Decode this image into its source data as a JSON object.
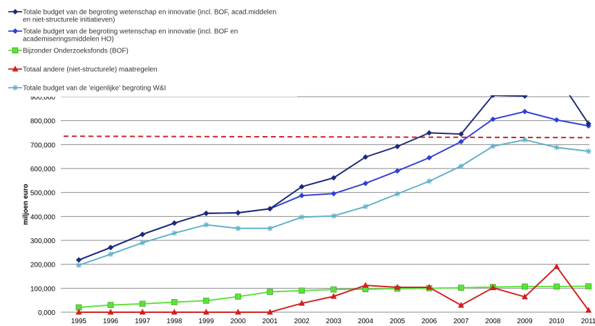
{
  "chart_data": {
    "type": "line",
    "title": "",
    "xlabel": "",
    "ylabel": "miljoen euro",
    "ylim": [
      0,
      900000
    ],
    "y_ticks": [
      "0,000",
      "100,000",
      "200,000",
      "300,000",
      "400,000",
      "500,000",
      "600,000",
      "700,000",
      "800,000",
      "900,000"
    ],
    "x": [
      "1995",
      "1996",
      "1997",
      "1998",
      "1999",
      "2000",
      "2001",
      "2002",
      "2003",
      "2004",
      "2005",
      "2006",
      "2007",
      "2008",
      "2009",
      "2010",
      "2011"
    ],
    "grid": "horizontal",
    "legend_position": "top-left",
    "series": [
      {
        "name_lines": [
          "Totale budget van de begroting wetenschap en innovatie (incl. BOF, acad.middelen",
          "en niet-structurele initiatieven)"
        ],
        "color": "#1b2a7a",
        "marker": "diamond",
        "values": [
          218000,
          270000,
          325000,
          372000,
          413000,
          415000,
          432000,
          524000,
          561000,
          648000,
          692000,
          749000,
          744000,
          906000,
          903000,
          988000,
          787000
        ]
      },
      {
        "name_lines": [
          "Totale budget van de begroting wetenschap en innovatie (incl. BOF en",
          "academiseringsmiddelen HO)"
        ],
        "color": "#2f3fd6",
        "marker": "diamond",
        "values": [
          218000,
          270000,
          325000,
          372000,
          413000,
          415000,
          432000,
          487000,
          495000,
          538000,
          590000,
          645000,
          712000,
          806000,
          838000,
          803000,
          778000
        ]
      },
      {
        "name_lines": [
          "Bijzonder Onderzoeksfonds (BOF)"
        ],
        "color": "#5ce23a",
        "marker": "square",
        "values": [
          20000,
          30000,
          35000,
          42000,
          48000,
          65000,
          85000,
          90000,
          95000,
          96000,
          98000,
          100000,
          102000,
          105000,
          107000,
          107000,
          108000
        ]
      },
      {
        "name_lines": [
          "Totaal andere (niet-structurele) maatregelen"
        ],
        "color": "#d11f1f",
        "marker": "triangle",
        "values": [
          0,
          0,
          0,
          0,
          0,
          0,
          0,
          37000,
          66000,
          112000,
          104000,
          104000,
          29000,
          102000,
          64000,
          190000,
          8000
        ]
      },
      {
        "name_lines": [
          "Totale budget van de 'eigenlijke' begroting W&I"
        ],
        "color": "#5fb0c9",
        "marker": "star",
        "values": [
          196000,
          242000,
          290000,
          330000,
          365000,
          350000,
          350000,
          397000,
          402000,
          441000,
          494000,
          547000,
          610000,
          693000,
          720000,
          688000,
          672000
        ]
      }
    ],
    "reference_line": {
      "color": "#d11f1f",
      "style": "dashed",
      "y_start": 735000,
      "y_end": 729000
    }
  }
}
